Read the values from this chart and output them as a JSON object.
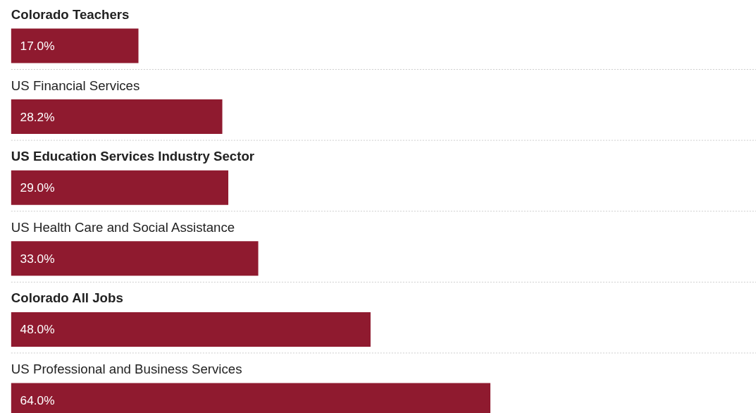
{
  "chart_data": {
    "type": "bar",
    "orientation": "horizontal",
    "categories": [
      "Colorado Teachers",
      "US Financial Services",
      "US Education Services Industry Sector",
      "US Health Care and Social Assistance",
      "Colorado All Jobs",
      "US Professional and Business Services"
    ],
    "values": [
      17.0,
      28.2,
      29.0,
      33.0,
      48.0,
      64.0
    ],
    "value_labels": [
      "17.0%",
      "28.2%",
      "29.0%",
      "33.0%",
      "48.0%",
      "64.0%"
    ],
    "color": "#8f1a2f",
    "grid": false
  }
}
